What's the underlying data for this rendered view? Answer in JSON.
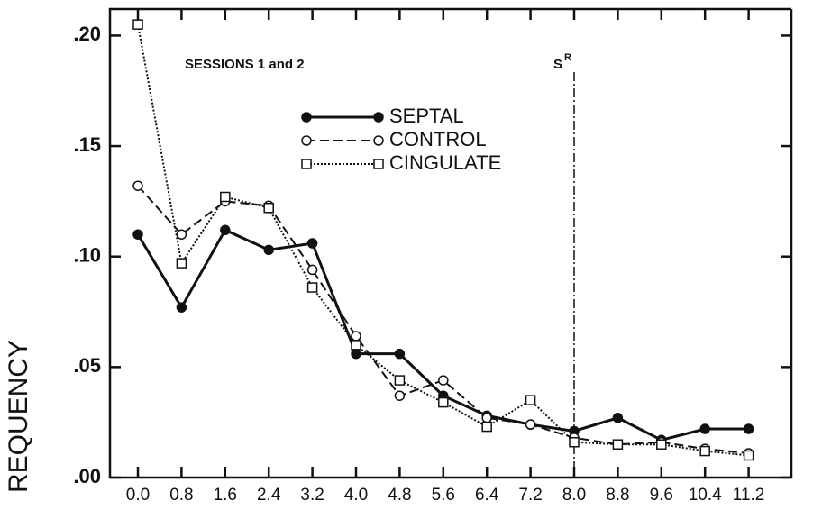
{
  "chart_data": {
    "type": "line",
    "annotations": [
      "SESSIONS 1 and 2",
      "S",
      "R"
    ],
    "y_label": "REQUENCY",
    "reference_x": 10,
    "categories": [
      "0.0",
      "0.8",
      "1.6",
      "2.4",
      "3.2",
      "4.0",
      "4.8",
      "5.6",
      "6.4",
      "7.2",
      "8.0",
      "8.8",
      "9.6",
      "10.4",
      "11.2"
    ],
    "series": [
      {
        "name": "SEPTAL",
        "color": "#111111",
        "line_style": "solid",
        "marker": "filled-circle",
        "values": [
          0.11,
          0.077,
          0.112,
          0.103,
          0.106,
          0.056,
          0.056,
          0.037,
          0.028,
          0.024,
          0.021,
          0.027,
          0.017,
          0.022,
          0.022
        ]
      },
      {
        "name": "CONTROL",
        "color": "#111111",
        "line_style": "dashed",
        "marker": "open-circle",
        "values": [
          0.132,
          0.11,
          0.125,
          0.123,
          0.094,
          0.064,
          0.037,
          0.044,
          0.027,
          0.024,
          0.018,
          0.015,
          0.016,
          0.013,
          0.011
        ]
      },
      {
        "name": "CINGULATE",
        "color": "#111111",
        "line_style": "dotted",
        "marker": "open-square",
        "values": [
          0.205,
          0.097,
          0.127,
          0.122,
          0.086,
          0.06,
          0.044,
          0.034,
          0.023,
          0.035,
          0.016,
          0.015,
          0.015,
          0.012,
          0.01
        ]
      }
    ],
    "ylim": [
      0,
      0.212
    ],
    "yticks": [
      {
        "value": 0,
        "label": ".00"
      },
      {
        "value": 0.05,
        "label": ".05"
      },
      {
        "value": 0.1,
        "label": ".10"
      },
      {
        "value": 0.15,
        "label": ".15"
      },
      {
        "value": 0.2,
        "label": ".20"
      }
    ],
    "grid": false
  }
}
